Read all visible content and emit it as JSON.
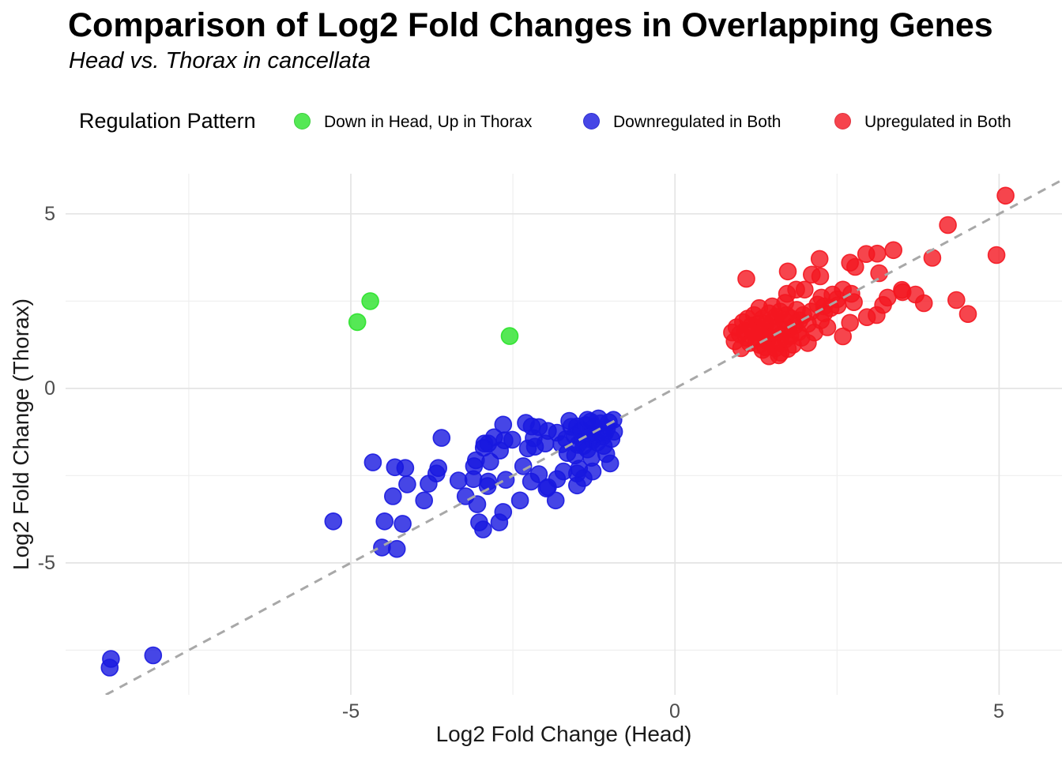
{
  "title": "Comparison of Log2 Fold Changes in Overlapping Genes",
  "subtitle": "Head vs. Thorax in cancellata",
  "legend": {
    "title": "Regulation Pattern",
    "items": [
      {
        "label": "Down in Head, Up in Thorax",
        "swatch": "#55e855",
        "swatch_border": "#3fcf3f"
      },
      {
        "label": "Downregulated in Both",
        "swatch": "#4646e6",
        "swatch_border": "#3030cf"
      },
      {
        "label": "Upregulated in Both",
        "swatch": "#f6444d",
        "swatch_border": "#e03340"
      }
    ]
  },
  "chart_data": {
    "type": "scatter",
    "title": "Comparison of Log2 Fold Changes in Overlapping Genes",
    "subtitle": "Head vs. Thorax in cancellata",
    "xlabel": "Log2 Fold Change (Head)",
    "ylabel": "Log2 Fold Change (Thorax)",
    "xlim": [
      -9.4,
      5.97
    ],
    "ylim": [
      -8.78,
      6.15
    ],
    "x_tick_values": [
      -5,
      0,
      5
    ],
    "x_tick_labels": [
      "-5",
      "0",
      "5"
    ],
    "x_minor_tick_values": [
      -7.5,
      -2.5,
      2.5
    ],
    "y_tick_values": [
      5,
      0,
      -5
    ],
    "y_tick_labels": [
      "5",
      "0",
      "-5"
    ],
    "y_minor_tick_values": [
      2.5,
      -2.5,
      -7.5
    ],
    "grid": true,
    "legend_position": "top",
    "reference_line": {
      "type": "identity y=x",
      "style": "dashed",
      "color": "#a8a8a8"
    },
    "style": {
      "grid_major_color": "#e4e4e4",
      "grid_minor_color": "#f0f0f0",
      "point_radius": 10.5,
      "point_fill_opacity": 0.8
    },
    "series": [
      {
        "name": "Down in Head, Up in Thorax",
        "color": "#2ae22a",
        "points": [
          [
            -4.9,
            1.9
          ],
          [
            -4.7,
            2.5
          ],
          [
            -2.55,
            1.5
          ]
        ]
      },
      {
        "name": "Downregulated in Both",
        "color": "#1818e0",
        "points": [
          [
            -8.7,
            -7.75
          ],
          [
            -8.72,
            -8.0
          ],
          [
            -8.05,
            -7.65
          ],
          [
            -5.27,
            -3.81
          ],
          [
            -4.66,
            -2.12
          ],
          [
            -4.52,
            -4.56
          ],
          [
            -4.48,
            -3.81
          ],
          [
            -4.35,
            -3.09
          ],
          [
            -4.32,
            -2.26
          ],
          [
            -4.29,
            -4.6
          ],
          [
            -4.2,
            -3.88
          ],
          [
            -4.16,
            -2.28
          ],
          [
            -4.13,
            -2.75
          ],
          [
            -3.87,
            -3.21
          ],
          [
            -3.8,
            -2.73
          ],
          [
            -3.68,
            -2.44
          ],
          [
            -3.65,
            -2.28
          ],
          [
            -3.6,
            -1.42
          ],
          [
            -3.34,
            -2.64
          ],
          [
            -3.23,
            -3.09
          ],
          [
            -3.11,
            -2.6
          ],
          [
            -3.1,
            -2.23
          ],
          [
            -3.07,
            -2.06
          ],
          [
            -3.05,
            -3.32
          ],
          [
            -3.02,
            -3.84
          ],
          [
            -2.96,
            -4.04
          ],
          [
            -2.95,
            -1.7
          ],
          [
            -2.94,
            -1.58
          ],
          [
            -2.89,
            -2.8
          ],
          [
            -2.88,
            -1.58
          ],
          [
            -2.88,
            -2.67
          ],
          [
            -2.85,
            -2.1
          ],
          [
            -2.79,
            -1.4
          ],
          [
            -2.71,
            -3.84
          ],
          [
            -2.7,
            -1.78
          ],
          [
            -2.65,
            -3.54
          ],
          [
            -2.65,
            -1.04
          ],
          [
            -2.63,
            -1.49
          ],
          [
            -2.61,
            -2.62
          ],
          [
            -2.51,
            -1.47
          ],
          [
            -2.39,
            -3.21
          ],
          [
            -2.34,
            -2.23
          ],
          [
            -2.3,
            -0.99
          ],
          [
            -2.27,
            -1.72
          ],
          [
            -2.22,
            -2.67
          ],
          [
            -2.21,
            -1.09
          ],
          [
            -2.18,
            -1.43
          ],
          [
            -2.16,
            -1.67
          ],
          [
            -2.1,
            -1.11
          ],
          [
            -2.1,
            -2.46
          ],
          [
            -2.0,
            -1.58
          ],
          [
            -1.98,
            -2.87
          ],
          [
            -1.96,
            -1.22
          ],
          [
            -1.96,
            -2.83
          ],
          [
            -1.84,
            -3.21
          ],
          [
            -1.82,
            -1.27
          ],
          [
            -1.82,
            -2.6
          ],
          [
            -1.72,
            -2.38
          ],
          [
            -1.66,
            -1.85
          ],
          [
            -1.63,
            -0.93
          ],
          [
            -1.54,
            -1.92
          ],
          [
            -1.51,
            -1.09
          ],
          [
            -1.51,
            -2.44
          ],
          [
            -1.51,
            -2.78
          ],
          [
            -1.48,
            -2.3
          ],
          [
            -1.41,
            -1.65
          ],
          [
            -1.41,
            -2.57
          ],
          [
            -1.35,
            -0.9
          ],
          [
            -1.29,
            -1.99
          ],
          [
            -1.27,
            -1.49
          ],
          [
            -1.27,
            -2.38
          ],
          [
            -1.18,
            -0.86
          ],
          [
            -1.11,
            -1.38
          ],
          [
            -1.06,
            -1.88
          ],
          [
            -1.02,
            -0.97
          ],
          [
            -1.0,
            -2.15
          ],
          [
            -0.94,
            -1.24
          ],
          [
            -1.45,
            -1.2
          ],
          [
            -1.38,
            -1.05
          ],
          [
            -1.32,
            -1.3
          ],
          [
            -1.25,
            -1.1
          ],
          [
            -1.2,
            -1.55
          ],
          [
            -1.15,
            -1.0
          ],
          [
            -1.1,
            -1.65
          ],
          [
            -1.05,
            -1.15
          ],
          [
            -0.98,
            -1.45
          ],
          [
            -0.95,
            -0.9
          ],
          [
            -1.55,
            -1.35
          ],
          [
            -1.6,
            -1.1
          ],
          [
            -1.68,
            -1.45
          ],
          [
            -1.75,
            -1.6
          ],
          [
            -1.35,
            -1.75
          ],
          [
            -1.22,
            -1.35
          ],
          [
            -1.08,
            -1.28
          ],
          [
            -1.5,
            -1.62
          ],
          [
            -1.42,
            -1.48
          ],
          [
            -1.3,
            -0.95
          ]
        ]
      },
      {
        "name": "Upregulated in Both",
        "color": "#f41620",
        "points": [
          [
            5.1,
            5.52
          ],
          [
            4.21,
            4.68
          ],
          [
            4.96,
            3.82
          ],
          [
            4.52,
            2.13
          ],
          [
            4.34,
            2.53
          ],
          [
            3.97,
            3.74
          ],
          [
            3.84,
            2.44
          ],
          [
            3.71,
            2.69
          ],
          [
            3.51,
            2.76
          ],
          [
            3.37,
            3.96
          ],
          [
            3.12,
            3.86
          ],
          [
            2.95,
            3.85
          ],
          [
            3.15,
            3.3
          ],
          [
            3.11,
            2.1
          ],
          [
            3.5,
            2.82
          ],
          [
            3.28,
            2.6
          ],
          [
            3.21,
            2.39
          ],
          [
            2.96,
            2.04
          ],
          [
            2.7,
            3.6
          ],
          [
            2.78,
            3.48
          ],
          [
            2.23,
            3.71
          ],
          [
            2.24,
            3.21
          ],
          [
            2.11,
            3.26
          ],
          [
            1.74,
            3.35
          ],
          [
            1.1,
            3.14
          ],
          [
            1.73,
            2.71
          ],
          [
            1.87,
            2.83
          ],
          [
            2.0,
            2.83
          ],
          [
            2.26,
            2.6
          ],
          [
            2.43,
            2.69
          ],
          [
            2.59,
            2.83
          ],
          [
            2.72,
            2.71
          ],
          [
            2.76,
            2.47
          ],
          [
            2.51,
            2.38
          ],
          [
            2.3,
            2.35
          ],
          [
            2.59,
            1.49
          ],
          [
            2.7,
            1.88
          ],
          [
            1.63,
            1.02
          ],
          [
            1.74,
            1.13
          ],
          [
            1.39,
            1.18
          ],
          [
            0.95,
            1.75
          ],
          [
            1.0,
            1.55
          ],
          [
            1.05,
            1.9
          ],
          [
            1.08,
            1.65
          ],
          [
            1.1,
            1.45
          ],
          [
            1.12,
            2.0
          ],
          [
            1.15,
            1.3
          ],
          [
            1.18,
            1.8
          ],
          [
            1.2,
            1.6
          ],
          [
            1.22,
            2.1
          ],
          [
            1.25,
            1.42
          ],
          [
            1.28,
            1.85
          ],
          [
            1.3,
            1.25
          ],
          [
            1.32,
            1.7
          ],
          [
            1.35,
            2.0
          ],
          [
            1.38,
            1.5
          ],
          [
            1.4,
            1.85
          ],
          [
            1.42,
            1.35
          ],
          [
            1.45,
            2.15
          ],
          [
            1.48,
            1.65
          ],
          [
            1.5,
            1.9
          ],
          [
            1.52,
            1.45
          ],
          [
            1.55,
            2.05
          ],
          [
            1.58,
            1.75
          ],
          [
            1.6,
            1.3
          ],
          [
            1.62,
            2.2
          ],
          [
            1.65,
            1.55
          ],
          [
            1.68,
            1.95
          ],
          [
            1.7,
            1.4
          ],
          [
            1.72,
            2.1
          ],
          [
            1.75,
            1.7
          ],
          [
            1.78,
            1.5
          ],
          [
            1.8,
            2.0
          ],
          [
            1.82,
            1.25
          ],
          [
            1.85,
            1.8
          ],
          [
            1.88,
            2.25
          ],
          [
            1.9,
            1.6
          ],
          [
            1.92,
            1.95
          ],
          [
            1.95,
            1.45
          ],
          [
            1.98,
            2.1
          ],
          [
            0.88,
            1.6
          ],
          [
            0.92,
            1.35
          ],
          [
            1.02,
            1.15
          ],
          [
            1.3,
            2.3
          ],
          [
            1.5,
            2.35
          ],
          [
            1.7,
            2.45
          ],
          [
            1.55,
            1.15
          ],
          [
            1.35,
            1.1
          ],
          [
            1.6,
            0.95
          ],
          [
            1.45,
            0.92
          ],
          [
            2.05,
            1.85
          ],
          [
            2.1,
            2.2
          ],
          [
            2.15,
            1.6
          ],
          [
            2.2,
            2.4
          ],
          [
            2.25,
            1.95
          ],
          [
            2.3,
            2.15
          ],
          [
            2.4,
            2.3
          ],
          [
            2.35,
            1.75
          ],
          [
            2.05,
            1.3
          ],
          [
            2.5,
            2.55
          ]
        ]
      }
    ]
  }
}
